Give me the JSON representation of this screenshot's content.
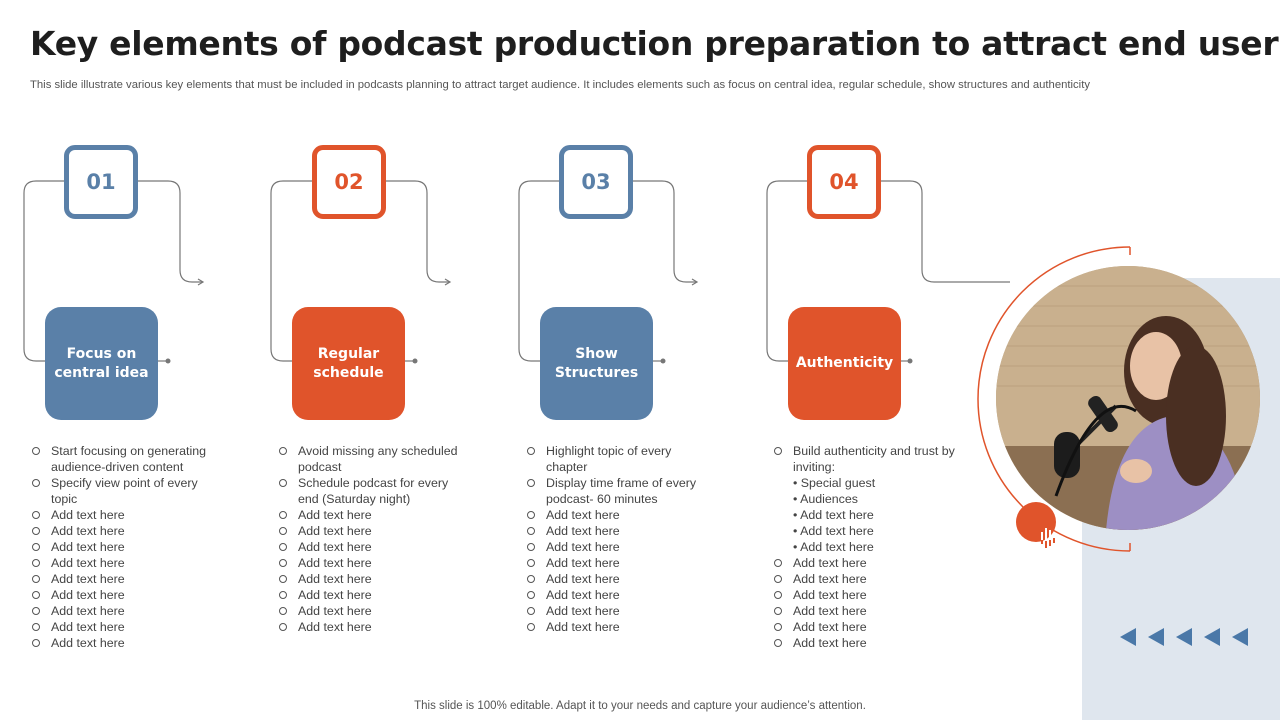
{
  "title": "Key elements of podcast production preparation to attract end users",
  "subtitle": "This slide illustrate various key elements that must be included in podcasts planning to attract target audience. It includes elements such as focus on central idea, regular schedule, show structures and authenticity",
  "footer": "This slide is 100% editable. Adapt it to your needs and capture your audience’s attention.",
  "colors": {
    "blue": "#5a80a8",
    "orange": "#e0542b",
    "panel": "#dfe6ee"
  },
  "steps": [
    {
      "number": "01",
      "label": "Focus on central idea",
      "color": "blue",
      "points": [
        "Start focusing on generating audience-driven content",
        "Specify view point of every topic",
        "Add text here",
        "Add text here",
        "Add text here",
        "Add text here",
        "Add text here",
        "Add text here",
        "Add text here",
        "Add text here",
        "Add text here"
      ]
    },
    {
      "number": "02",
      "label": "Regular schedule",
      "color": "orange",
      "points": [
        "Avoid missing any scheduled podcast",
        "Schedule podcast for every end (Saturday night)",
        "Add text here",
        "Add text here",
        "Add text here",
        "Add text here",
        "Add text here",
        "Add text here",
        "Add text here",
        "Add text here"
      ]
    },
    {
      "number": "03",
      "label": "Show Structures",
      "color": "blue",
      "points": [
        "Highlight topic of every chapter",
        "Display time frame of every podcast- 60 minutes",
        "Add text here",
        "Add text here",
        "Add text here",
        "Add text here",
        "Add text here",
        "Add text here",
        "Add text here",
        "Add text here"
      ]
    },
    {
      "number": "04",
      "label": "Authenticity",
      "color": "orange",
      "points": [
        "Build authenticity and trust by inviting:",
        "• Special guest",
        "• Audiences",
        "• Add text here",
        "• Add text here",
        "• Add text here",
        "Add text here",
        "Add text here",
        "Add text here",
        "Add text here",
        "Add text here",
        "Add text here"
      ]
    }
  ]
}
